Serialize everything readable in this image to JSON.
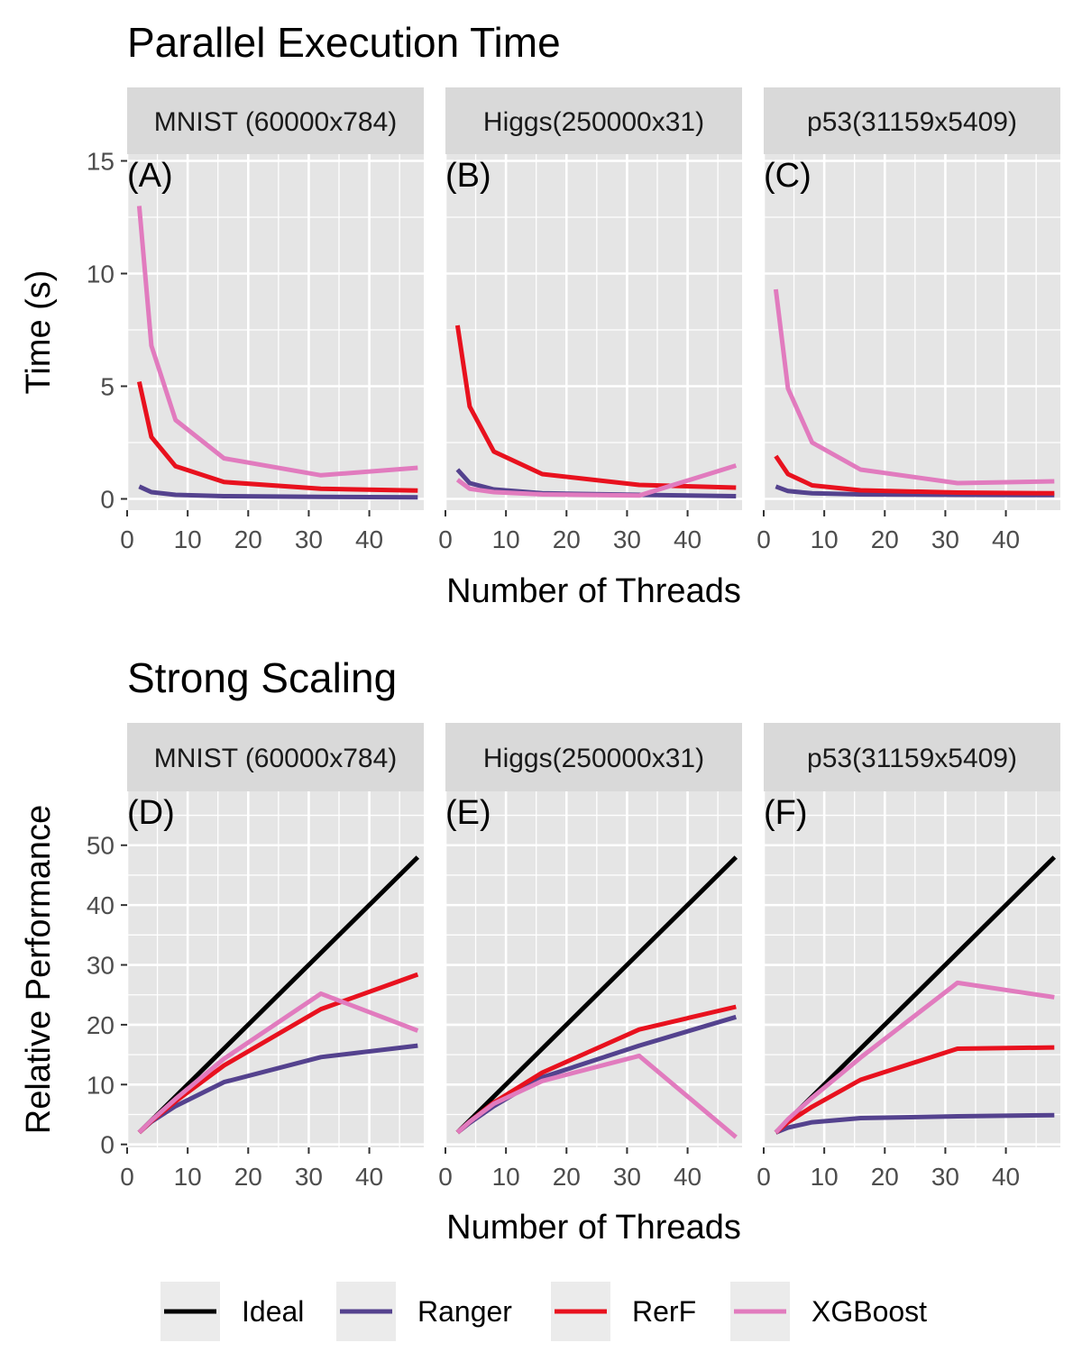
{
  "chart_data": [
    {
      "type": "line",
      "title": "Parallel Execution Time",
      "xlabel": "Number of Threads",
      "ylabel": "Time (s)",
      "xlim": [
        0,
        49
      ],
      "ylim": [
        -0.5,
        15.3
      ],
      "xticks": [
        0,
        10,
        20,
        30,
        40
      ],
      "yticks": [
        0,
        5,
        10,
        15
      ],
      "grid": true,
      "panels": [
        {
          "tag": "(A)",
          "strip": "MNIST (60000x784)",
          "series": [
            {
              "name": "Ranger",
              "x": [
                2,
                4,
                8,
                16,
                32,
                48
              ],
              "y": [
                0.55,
                0.3,
                0.18,
                0.12,
                0.09,
                0.07
              ]
            },
            {
              "name": "RerF",
              "x": [
                2,
                4,
                8,
                16,
                32,
                48
              ],
              "y": [
                5.2,
                2.75,
                1.45,
                0.75,
                0.45,
                0.37
              ]
            },
            {
              "name": "XGBoost",
              "x": [
                2,
                4,
                8,
                16,
                32,
                48
              ],
              "y": [
                13.0,
                6.8,
                3.5,
                1.8,
                1.05,
                1.38
              ]
            }
          ]
        },
        {
          "tag": "(B)",
          "strip": "Higgs(250000x31)",
          "series": [
            {
              "name": "Ranger",
              "x": [
                2,
                4,
                8,
                16,
                32,
                48
              ],
              "y": [
                1.3,
                0.7,
                0.42,
                0.25,
                0.18,
                0.12
              ]
            },
            {
              "name": "RerF",
              "x": [
                2,
                4,
                8,
                16,
                32,
                48
              ],
              "y": [
                7.7,
                4.1,
                2.1,
                1.1,
                0.62,
                0.5
              ]
            },
            {
              "name": "XGBoost",
              "x": [
                2,
                4,
                8,
                16,
                32,
                48
              ],
              "y": [
                0.85,
                0.45,
                0.3,
                0.2,
                0.15,
                1.48
              ]
            }
          ]
        },
        {
          "tag": "(C)",
          "strip": "p53(31159x5409)",
          "series": [
            {
              "name": "Ranger",
              "x": [
                2,
                4,
                8,
                16,
                32,
                48
              ],
              "y": [
                0.55,
                0.35,
                0.25,
                0.2,
                0.18,
                0.17
              ]
            },
            {
              "name": "RerF",
              "x": [
                2,
                4,
                8,
                16,
                32,
                48
              ],
              "y": [
                1.9,
                1.1,
                0.6,
                0.38,
                0.28,
                0.25
              ]
            },
            {
              "name": "XGBoost",
              "x": [
                2,
                4,
                8,
                16,
                32,
                48
              ],
              "y": [
                9.3,
                4.9,
                2.5,
                1.3,
                0.7,
                0.78
              ]
            }
          ]
        }
      ]
    },
    {
      "type": "line",
      "title": "Strong Scaling",
      "xlabel": "Number of Threads",
      "ylabel": "Relative Performance",
      "xlim": [
        0,
        49
      ],
      "ylim": [
        -0.5,
        59
      ],
      "xticks": [
        0,
        10,
        20,
        30,
        40
      ],
      "yticks": [
        0,
        10,
        20,
        30,
        40,
        50
      ],
      "grid": true,
      "panels": [
        {
          "tag": "(D)",
          "strip": "MNIST (60000x784)",
          "series": [
            {
              "name": "Ideal",
              "x": [
                2,
                48
              ],
              "y": [
                2,
                48
              ]
            },
            {
              "name": "Ranger",
              "x": [
                2,
                4,
                8,
                16,
                32,
                48
              ],
              "y": [
                2,
                3.8,
                6.4,
                10.4,
                14.6,
                16.5
              ]
            },
            {
              "name": "RerF",
              "x": [
                2,
                4,
                8,
                16,
                32,
                48
              ],
              "y": [
                2,
                3.9,
                7.2,
                13.2,
                22.6,
                28.4
              ]
            },
            {
              "name": "XGBoost",
              "x": [
                2,
                4,
                8,
                16,
                32,
                48
              ],
              "y": [
                2,
                4.0,
                7.6,
                14.3,
                25.2,
                19.0
              ]
            }
          ]
        },
        {
          "tag": "(E)",
          "strip": "Higgs(250000x31)",
          "series": [
            {
              "name": "Ideal",
              "x": [
                2,
                48
              ],
              "y": [
                2,
                48
              ]
            },
            {
              "name": "Ranger",
              "x": [
                2,
                4,
                8,
                16,
                32,
                48
              ],
              "y": [
                2,
                3.6,
                6.4,
                11.2,
                16.5,
                21.3
              ]
            },
            {
              "name": "RerF",
              "x": [
                2,
                4,
                8,
                16,
                32,
                48
              ],
              "y": [
                2,
                3.8,
                7.0,
                12.0,
                19.2,
                23.0
              ]
            },
            {
              "name": "XGBoost",
              "x": [
                2,
                4,
                8,
                16,
                32,
                48
              ],
              "y": [
                2,
                3.8,
                6.8,
                10.6,
                14.8,
                1.2
              ]
            }
          ]
        },
        {
          "tag": "(F)",
          "strip": "p53(31159x5409)",
          "series": [
            {
              "name": "Ideal",
              "x": [
                2,
                48
              ],
              "y": [
                2,
                48
              ]
            },
            {
              "name": "Ranger",
              "x": [
                2,
                4,
                8,
                16,
                32,
                48
              ],
              "y": [
                2,
                2.8,
                3.7,
                4.4,
                4.7,
                4.9
              ]
            },
            {
              "name": "RerF",
              "x": [
                2,
                4,
                8,
                16,
                32,
                48
              ],
              "y": [
                2,
                3.7,
                6.3,
                10.8,
                16.0,
                16.2
              ]
            },
            {
              "name": "XGBoost",
              "x": [
                2,
                4,
                8,
                16,
                32,
                48
              ],
              "y": [
                2,
                4.2,
                7.8,
                14.5,
                27.0,
                24.6
              ]
            }
          ]
        }
      ]
    }
  ],
  "legend": {
    "position": "bottom",
    "items": [
      {
        "name": "Ideal",
        "color": "#000000"
      },
      {
        "name": "Ranger",
        "color": "#54428e"
      },
      {
        "name": "RerF",
        "color": "#e8111e"
      },
      {
        "name": "XGBoost",
        "color": "#e17bbe"
      }
    ]
  },
  "colors": {
    "Ideal": "#000000",
    "Ranger": "#54428e",
    "RerF": "#e8111e",
    "XGBoost": "#e17bbe",
    "panel_background": "#e5e5e5",
    "strip_background": "#d9d9d9",
    "grid": "#ffffff"
  }
}
